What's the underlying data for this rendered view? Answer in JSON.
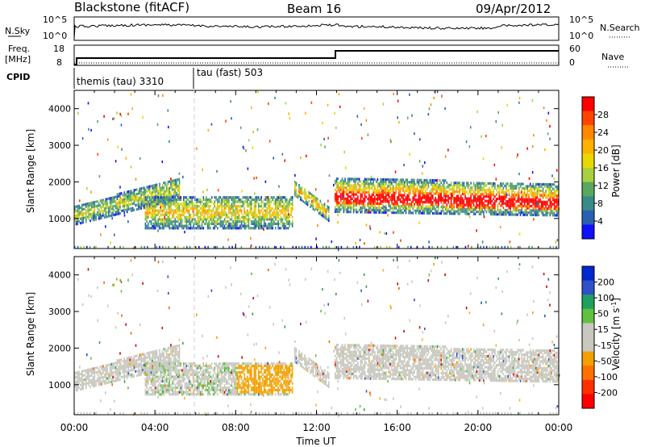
{
  "header": {
    "radar": "Blackstone (fitACF)",
    "beam": "Beam 16",
    "date": "09/Apr/2012"
  },
  "top_panels": {
    "nsky_label": "N.Sky",
    "nsky_ticks": [
      "10^5",
      "10^0"
    ],
    "nsearch_label": "N.Search",
    "nsearch_ticks": [
      "10^5",
      "10^0"
    ],
    "freq_label_1": "Freq.",
    "freq_label_2": "[MHz]",
    "freq_ticks": [
      "18",
      "8"
    ],
    "nave_label": "Nave",
    "nave_ticks": [
      "60",
      "0"
    ],
    "cpid_label": "CPID",
    "cpid_1": "themis (tau) 3310",
    "cpid_2": "tau (fast) 503"
  },
  "colorbars": {
    "power": {
      "label": "Power [dB]",
      "ticks": [
        "28",
        "24",
        "20",
        "16",
        "12",
        "8",
        "4"
      ],
      "colors": [
        "#ff0000",
        "#ff4400",
        "#ff8800",
        "#ffb000",
        "#e8d800",
        "#a8d040",
        "#5aa860",
        "#3a8a8a",
        "#2a60b0",
        "#1010ff"
      ]
    },
    "velocity": {
      "label": "Velocity [m s",
      "label_exp": "-1",
      "label_end": "]",
      "ticks": [
        "200",
        "100",
        "50",
        "15",
        "-15",
        "-50",
        "-100",
        "-200"
      ],
      "colors": [
        "#0028d0",
        "#3050c8",
        "#20a060",
        "#60c040",
        "#c8c8c0",
        "#c8c8c0",
        "#f0a000",
        "#ff7000",
        "#ff3000",
        "#ff0000"
      ]
    }
  },
  "chart_data": [
    {
      "type": "heatmap",
      "title": "Power",
      "ylabel": "Slant Range [km]",
      "xlabel": "Time UT",
      "yticks": [
        "1000",
        "2000",
        "3000",
        "4000"
      ],
      "xticks": [
        "00:00",
        "04:00",
        "08:00",
        "12:00",
        "16:00",
        "20:00",
        "00:00"
      ],
      "xlim_hours": [
        0,
        24
      ],
      "ylim_km": [
        180,
        4500
      ],
      "bands": [
        {
          "t0": 0.0,
          "t1": 5.2,
          "r0_start": 800,
          "r0_end": 1500,
          "r1_start": 1300,
          "r1_end": 2100,
          "level": 0.35
        },
        {
          "t0": 3.5,
          "t1": 10.8,
          "r0_start": 700,
          "r0_end": 700,
          "r1_start": 1600,
          "r1_end": 1600,
          "level": 0.45
        },
        {
          "t0": 10.9,
          "t1": 12.6,
          "r0_start": 1600,
          "r0_end": 900,
          "r1_start": 2000,
          "r1_end": 1300,
          "level": 0.55
        },
        {
          "t0": 12.9,
          "t1": 24.0,
          "r0_start": 1150,
          "r0_end": 1050,
          "r1_start": 2100,
          "r1_end": 1900,
          "level": 0.7
        }
      ]
    },
    {
      "type": "heatmap",
      "title": "Velocity",
      "ylabel": "Slant Range [km]",
      "xlabel": "Time UT",
      "yticks": [
        "1000",
        "2000",
        "3000",
        "4000"
      ],
      "xticks": [
        "00:00",
        "04:00",
        "08:00",
        "12:00",
        "16:00",
        "20:00",
        "00:00"
      ],
      "xlim_hours": [
        0,
        24
      ],
      "ylim_km": [
        180,
        4500
      ]
    }
  ]
}
